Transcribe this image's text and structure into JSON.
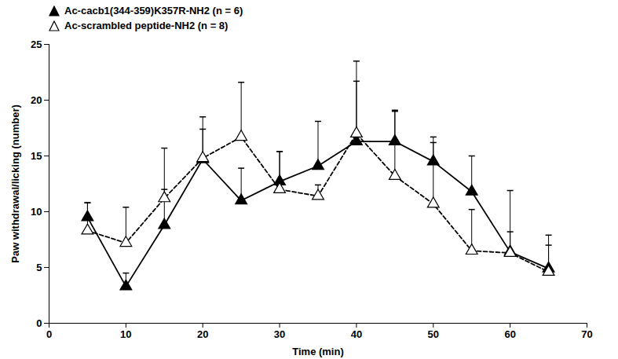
{
  "chart_data": {
    "type": "line",
    "xlabel": "Time (min)",
    "ylabel": "Paw withdrawal/licking (number)",
    "x": [
      5,
      10,
      15,
      20,
      25,
      30,
      35,
      40,
      45,
      50,
      55,
      60,
      65
    ],
    "xlim": [
      0,
      70
    ],
    "xticks": [
      0,
      10,
      20,
      30,
      40,
      50,
      60,
      70
    ],
    "ylim": [
      0,
      25
    ],
    "yticks": [
      0,
      5,
      10,
      15,
      20,
      25
    ],
    "grid": false,
    "legend": "top-left",
    "series": [
      {
        "name": "Ac-cacb1(344-359)K357R-NH2 (n = 6)",
        "color": "#000000",
        "marker": "filled-triangle",
        "line_style": "solid",
        "values": [
          9.5,
          3.3,
          8.8,
          14.7,
          11.0,
          12.7,
          14.1,
          16.3,
          16.3,
          14.5,
          11.8,
          6.4,
          4.9
        ],
        "errors": [
          1.3,
          1.2,
          3.2,
          2.7,
          2.9,
          2.7,
          4.0,
          5.4,
          2.8,
          2.2,
          3.2,
          5.5,
          3.0
        ]
      },
      {
        "name": "Ac-scrambled peptide-NH2 (n = 8)",
        "color": "#000000",
        "marker": "open-triangle",
        "line_style": "dashed",
        "values": [
          8.3,
          7.2,
          11.2,
          14.8,
          16.7,
          12.0,
          11.4,
          17.0,
          13.2,
          10.7,
          6.5,
          6.3,
          4.6
        ],
        "errors": [
          2.5,
          3.2,
          4.5,
          3.7,
          4.9,
          3.4,
          1.0,
          6.5,
          5.8,
          5.5,
          3.7,
          1.9,
          2.4
        ]
      }
    ]
  }
}
